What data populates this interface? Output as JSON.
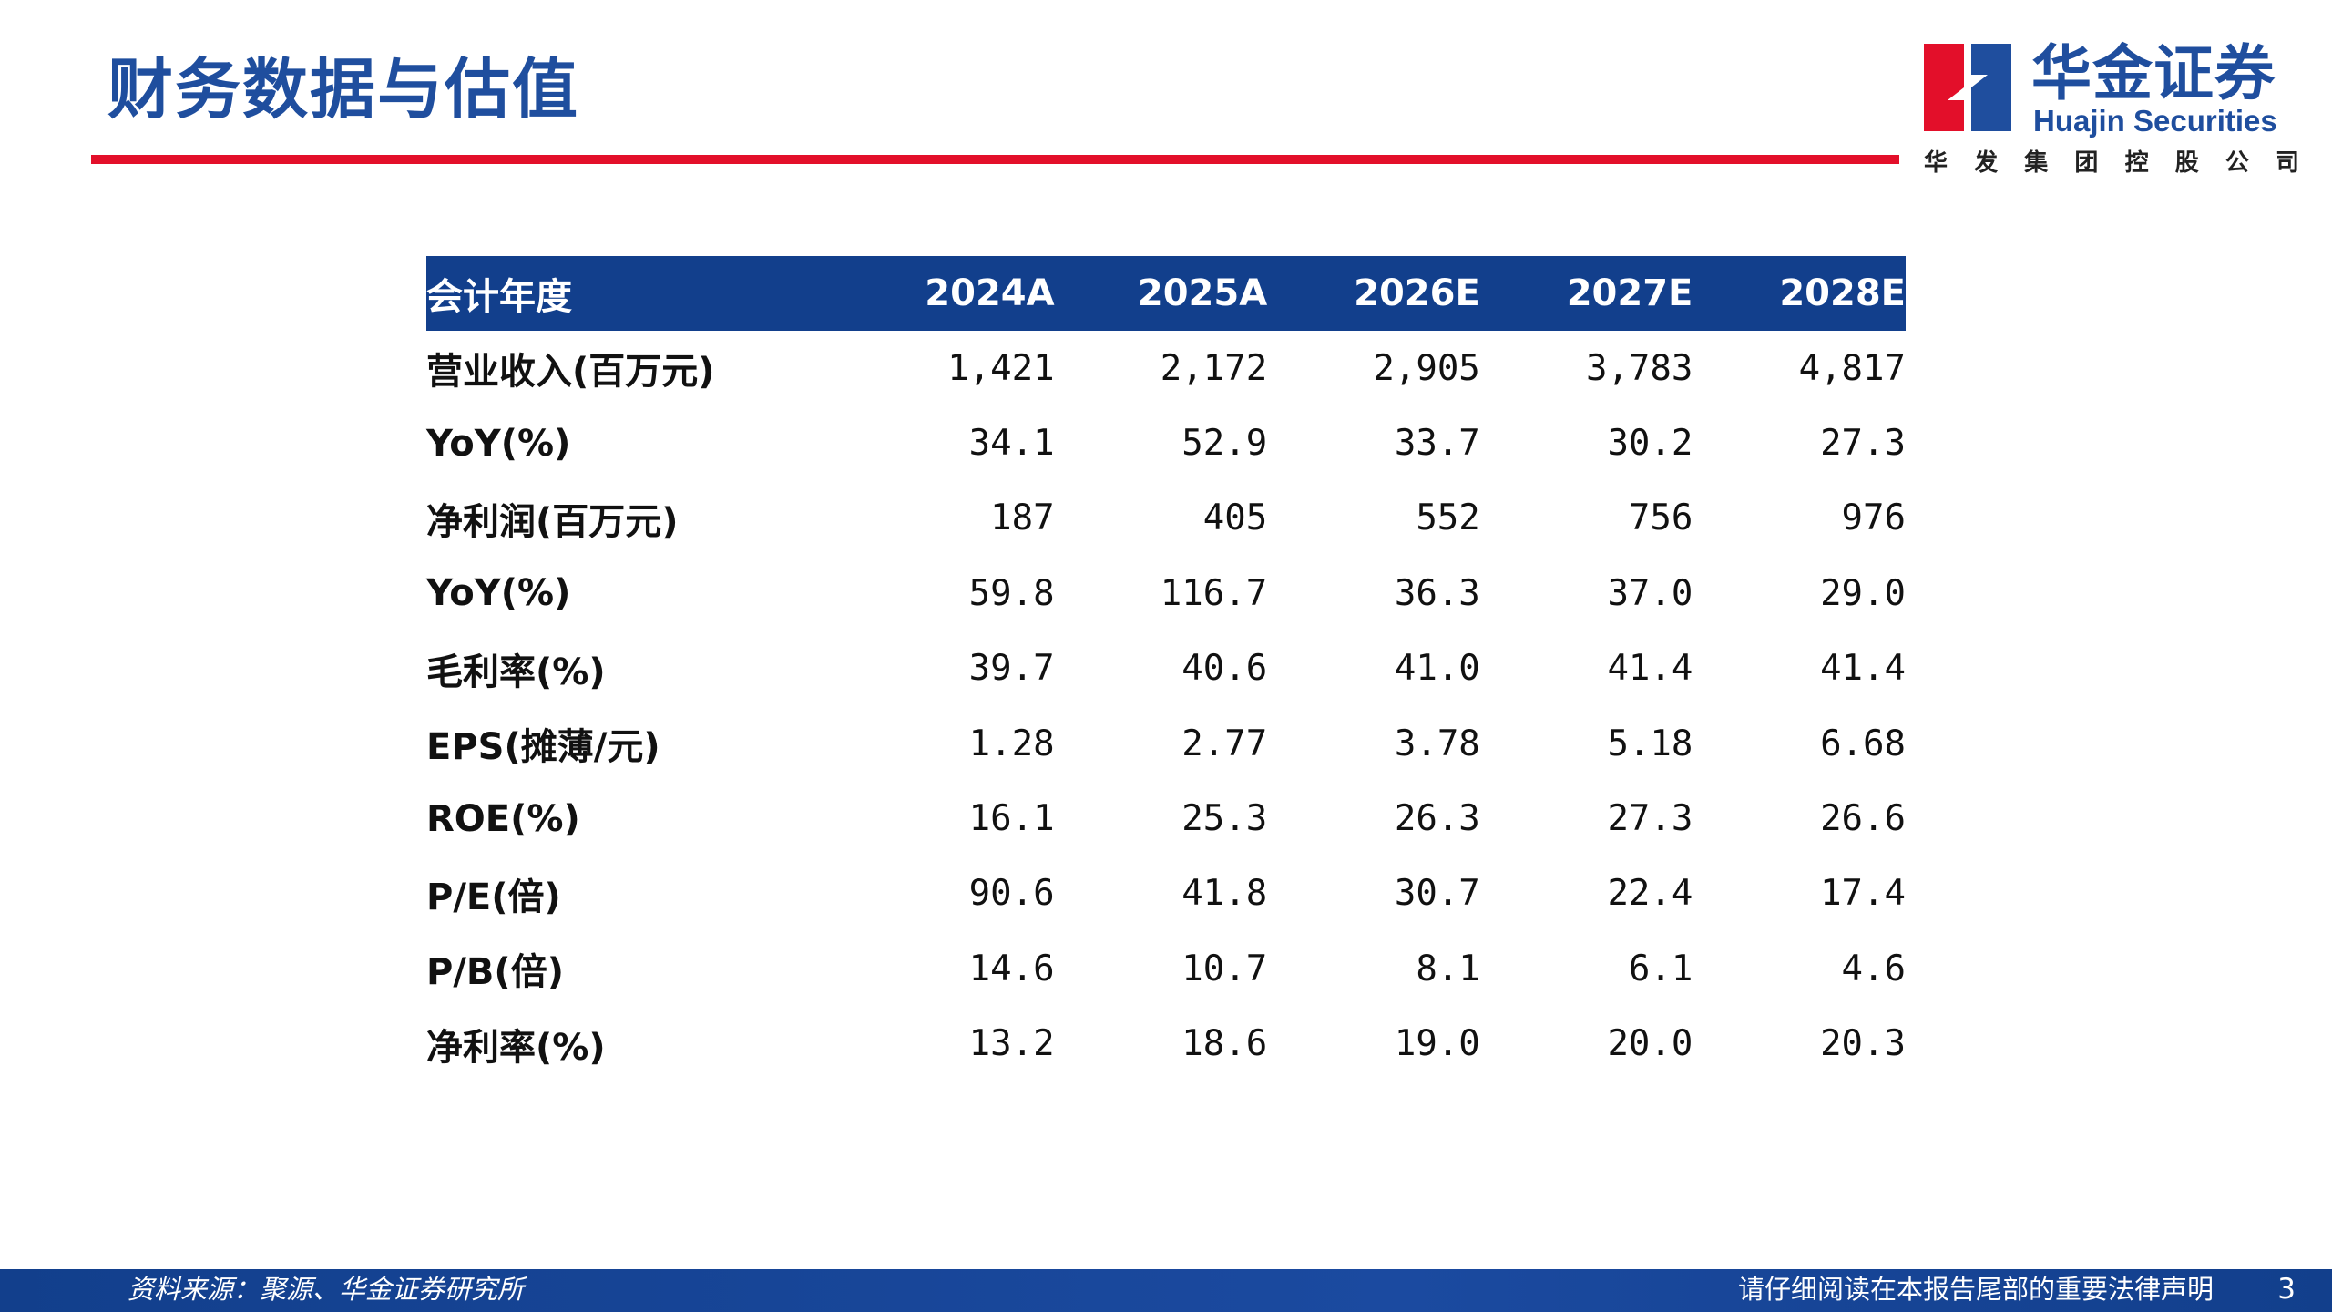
{
  "title": "财务数据与估值",
  "logo": {
    "cn": "华金证券",
    "en": "Huajin Securities",
    "group": [
      "华",
      "发",
      "集",
      "团",
      "控",
      "股",
      "公",
      "司"
    ],
    "colors": {
      "red": "#e30f2a",
      "blue": "#1f4e9e"
    }
  },
  "table": {
    "header": [
      "会计年度",
      "2024A",
      "2025A",
      "2026E",
      "2027E",
      "2028E"
    ],
    "rows": [
      {
        "label": "营业收入(百万元)",
        "values": [
          "1,421",
          "2,172",
          "2,905",
          "3,783",
          "4,817"
        ]
      },
      {
        "label": "YoY(%)",
        "values": [
          "34.1",
          "52.9",
          "33.7",
          "30.2",
          "27.3"
        ]
      },
      {
        "label": "净利润(百万元)",
        "values": [
          "187",
          "405",
          "552",
          "756",
          "976"
        ]
      },
      {
        "label": "YoY(%)",
        "values": [
          "59.8",
          "116.7",
          "36.3",
          "37.0",
          "29.0"
        ]
      },
      {
        "label": "毛利率(%)",
        "values": [
          "39.7",
          "40.6",
          "41.0",
          "41.4",
          "41.4"
        ]
      },
      {
        "label": "EPS(摊薄/元)",
        "values": [
          "1.28",
          "2.77",
          "3.78",
          "5.18",
          "6.68"
        ]
      },
      {
        "label": "ROE(%)",
        "values": [
          "16.1",
          "25.3",
          "26.3",
          "27.3",
          "26.6"
        ]
      },
      {
        "label": "P/E(倍)",
        "values": [
          "90.6",
          "41.8",
          "30.7",
          "22.4",
          "17.4"
        ]
      },
      {
        "label": "P/B(倍)",
        "values": [
          "14.6",
          "10.7",
          "8.1",
          "6.1",
          "4.6"
        ]
      },
      {
        "label": "净利率(%)",
        "values": [
          "13.2",
          "18.6",
          "19.0",
          "20.0",
          "20.3"
        ]
      }
    ]
  },
  "footer": {
    "source": "资料来源：聚源、华金证券研究所",
    "disclaimer": "请仔细阅读在本报告尾部的重要法律声明",
    "page": "3"
  },
  "colors": {
    "accent_red": "#e30f2a",
    "brand_blue": "#123f8c",
    "title_blue": "#1f4e9e"
  }
}
